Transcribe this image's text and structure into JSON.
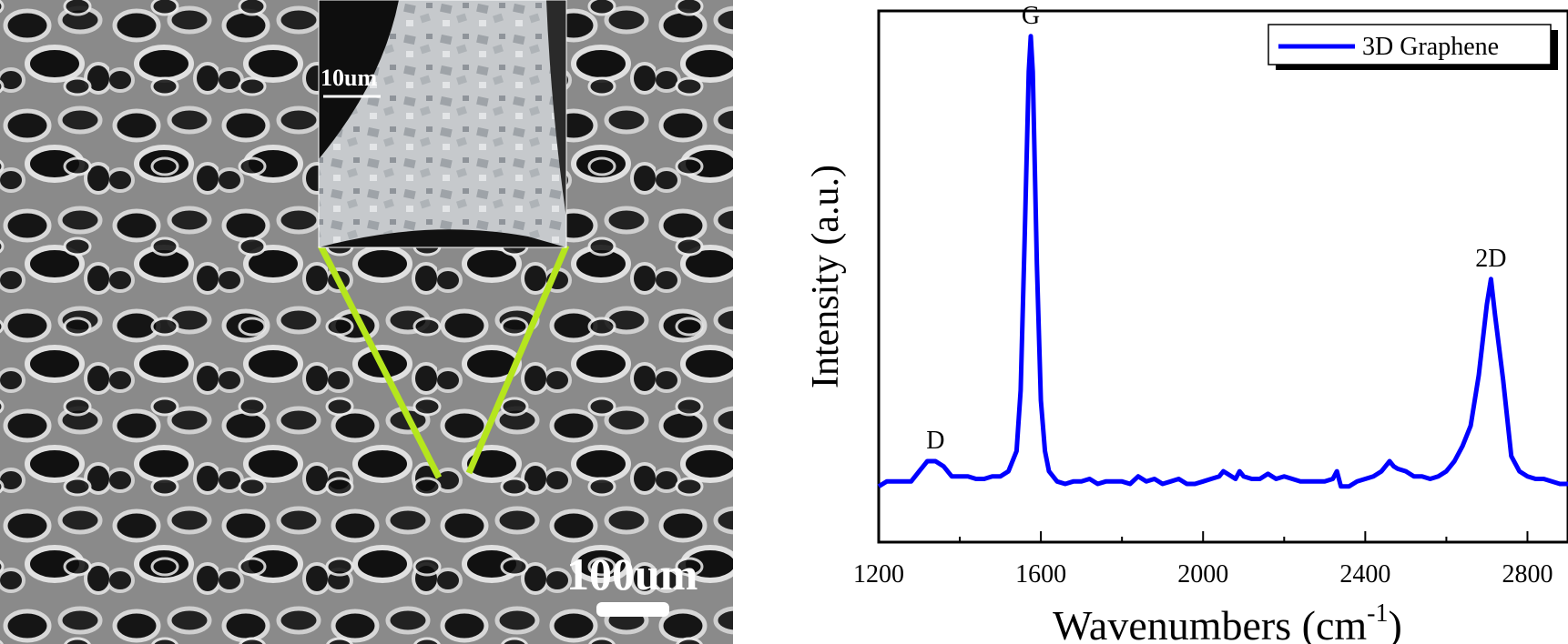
{
  "micrograph": {
    "main_scale_label": "100um",
    "inset_scale_label": "10um",
    "colors": {
      "pointer_lines": "#b5e61d",
      "scale_bar": "#ffffff"
    }
  },
  "chart_data": {
    "type": "line",
    "xlabel": "Wavenumbers (cm",
    "xlabel_sup": "-1",
    "xlabel_close": ")",
    "ylabel": "Intensity (a.u.)",
    "xlim": [
      1200,
      2900
    ],
    "ylim": [
      0,
      1.05
    ],
    "x_ticks": [
      1200,
      1600,
      2000,
      2400,
      2800
    ],
    "x_tick_labels": [
      "1200",
      "1600",
      "2000",
      "2400",
      "2800"
    ],
    "grid": false,
    "legend_position": "top-right",
    "series": [
      {
        "name": "3D Graphene",
        "color": "#0000ff",
        "x": [
          1200,
          1220,
          1240,
          1260,
          1280,
          1300,
          1320,
          1340,
          1360,
          1380,
          1400,
          1420,
          1440,
          1460,
          1480,
          1500,
          1520,
          1540,
          1550,
          1560,
          1570,
          1575,
          1580,
          1590,
          1600,
          1610,
          1620,
          1640,
          1660,
          1680,
          1700,
          1720,
          1740,
          1760,
          1780,
          1800,
          1820,
          1840,
          1860,
          1880,
          1900,
          1920,
          1940,
          1960,
          1980,
          2000,
          2020,
          2040,
          2050,
          2060,
          2080,
          2090,
          2100,
          2120,
          2140,
          2160,
          2180,
          2200,
          2220,
          2240,
          2260,
          2280,
          2300,
          2320,
          2330,
          2340,
          2360,
          2380,
          2400,
          2420,
          2440,
          2460,
          2470,
          2480,
          2500,
          2520,
          2540,
          2560,
          2580,
          2600,
          2620,
          2640,
          2660,
          2680,
          2700,
          2710,
          2720,
          2740,
          2760,
          2780,
          2800,
          2820,
          2840,
          2860,
          2880,
          2900
        ],
        "y": [
          0.11,
          0.12,
          0.12,
          0.12,
          0.12,
          0.14,
          0.16,
          0.16,
          0.15,
          0.13,
          0.13,
          0.13,
          0.125,
          0.125,
          0.13,
          0.13,
          0.14,
          0.18,
          0.3,
          0.6,
          0.93,
          1.0,
          0.93,
          0.55,
          0.28,
          0.18,
          0.14,
          0.12,
          0.115,
          0.12,
          0.12,
          0.125,
          0.115,
          0.12,
          0.12,
          0.12,
          0.115,
          0.13,
          0.12,
          0.125,
          0.115,
          0.12,
          0.125,
          0.115,
          0.115,
          0.12,
          0.125,
          0.13,
          0.14,
          0.135,
          0.125,
          0.14,
          0.13,
          0.125,
          0.125,
          0.135,
          0.125,
          0.13,
          0.125,
          0.12,
          0.12,
          0.12,
          0.12,
          0.125,
          0.14,
          0.11,
          0.11,
          0.12,
          0.125,
          0.13,
          0.14,
          0.16,
          0.15,
          0.145,
          0.14,
          0.13,
          0.13,
          0.125,
          0.13,
          0.14,
          0.16,
          0.19,
          0.23,
          0.33,
          0.47,
          0.52,
          0.45,
          0.32,
          0.17,
          0.14,
          0.13,
          0.125,
          0.125,
          0.12,
          0.115,
          0.115
        ]
      }
    ],
    "annotations": [
      {
        "text": "G",
        "x": 1575,
        "y": 1.0
      },
      {
        "text": "D",
        "x": 1340,
        "y": 0.16
      },
      {
        "text": "2D",
        "x": 2710,
        "y": 0.52
      }
    ]
  }
}
